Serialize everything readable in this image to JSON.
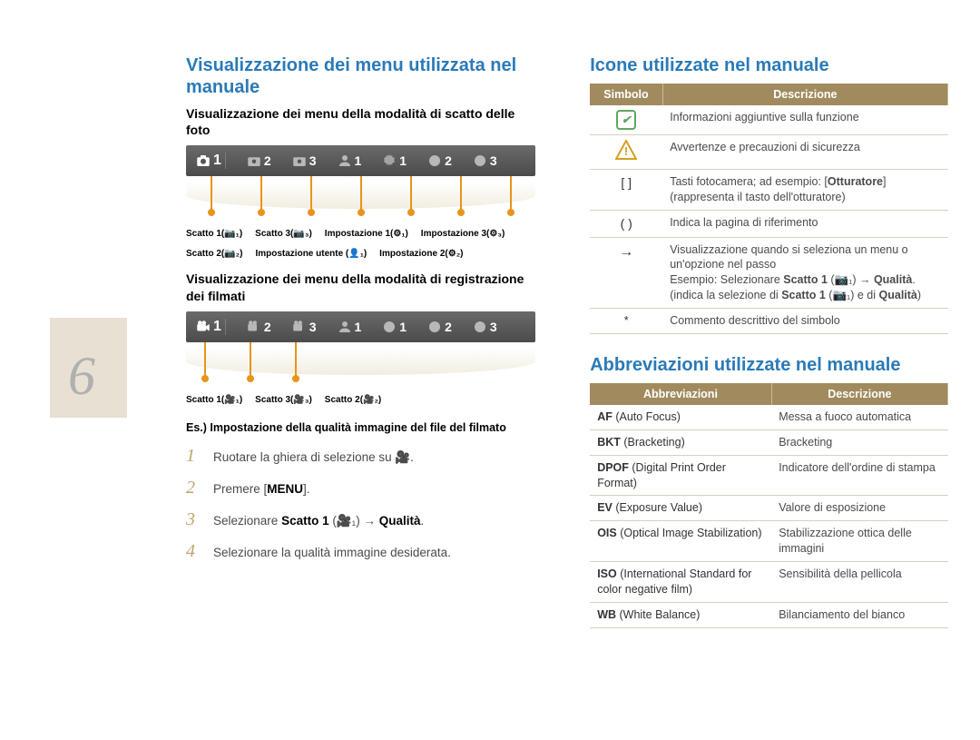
{
  "page_number": "6",
  "left": {
    "title": "Visualizzazione dei menu utilizzata nel manuale",
    "section1_heading": "Visualizzazione dei menu della modalità di scatto delle foto",
    "photo_labels": [
      "Scatto 1(📷₁)",
      "Scatto 3(📷₃)",
      "Impostazione 1(⚙₁)",
      "Impostazione 3(⚙₃)",
      "Scatto 2(📷₂)",
      "Impostazione utente (👤₁)",
      "Impostazione 2(⚙₂)"
    ],
    "section2_heading": "Visualizzazione dei menu della modalità di registrazione dei filmati",
    "video_labels": [
      "Scatto 1(🎥₁)",
      "Scatto 3(🎥₃)",
      "Scatto 2(🎥₂)"
    ],
    "example_heading": "Es.) Impostazione della qualità immagine del file del filmato",
    "steps": [
      {
        "num": "1",
        "text": "Ruotare la ghiera di selezione su 🎥."
      },
      {
        "num": "2",
        "html": "Premere [<b>MENU</b>]."
      },
      {
        "num": "3",
        "html": "Selezionare <b>Scatto 1</b> (🎥₁) → <b>Qualità</b>."
      },
      {
        "num": "4",
        "text": "Selezionare la qualità immagine desiderata."
      }
    ]
  },
  "right": {
    "icons_title": "Icone utilizzate nel manuale",
    "icons_table": {
      "headers": [
        "Simbolo",
        "Descrizione"
      ],
      "rows": [
        {
          "symbol": "note",
          "desc": "Informazioni aggiuntive sulla funzione"
        },
        {
          "symbol": "warn",
          "desc": "Avvertenze e precauzioni di sicurezza"
        },
        {
          "symbol": "bracket",
          "desc": "Tasti fotocamera; ad esempio: [<b>Otturatore</b>] (rappresenta il tasto dell'otturatore)"
        },
        {
          "symbol": "paren",
          "desc": "Indica la pagina di riferimento"
        },
        {
          "symbol": "arrow",
          "desc": "Visualizzazione quando si seleziona un menu o un'opzione nel passo<br>Esempio: Selezionare <b>Scatto 1</b> (📷₁) → <b>Qualità</b>. (indica la selezione di <b>Scatto 1</b> (📷₁) e di <b>Qualità</b>)"
        },
        {
          "symbol": "star",
          "desc": "Commento descrittivo del simbolo"
        }
      ]
    },
    "abbrev_title": "Abbreviazioni utilizzate nel manuale",
    "abbrev_table": {
      "headers": [
        "Abbreviazioni",
        "Descrizione"
      ],
      "rows": [
        {
          "abbr": "<b>AF</b> (Auto Focus)",
          "desc": "Messa a fuoco automatica"
        },
        {
          "abbr": "<b>BKT</b> (Bracketing)",
          "desc": "Bracketing"
        },
        {
          "abbr": "<b>DPOF</b> (Digital Print Order Format)",
          "desc": "Indicatore dell'ordine di stampa"
        },
        {
          "abbr": "<b>EV</b> (Exposure Value)",
          "desc": "Valore di esposizione"
        },
        {
          "abbr": "<b>OIS</b> (Optical Image Stabilization)",
          "desc": "Stabilizzazione ottica delle immagini"
        },
        {
          "abbr": "<b>ISO</b> (International Standard for color negative film)",
          "desc": "Sensibilità della pellicola"
        },
        {
          "abbr": "<b>WB</b> (White Balance)",
          "desc": "Bilanciamento del bianco"
        }
      ]
    }
  },
  "colors": {
    "heading": "#2a7ab8",
    "table_header_bg": "#a18b5e",
    "pointer": "#e8941a",
    "page_num_bg": "#e7e0d3"
  }
}
